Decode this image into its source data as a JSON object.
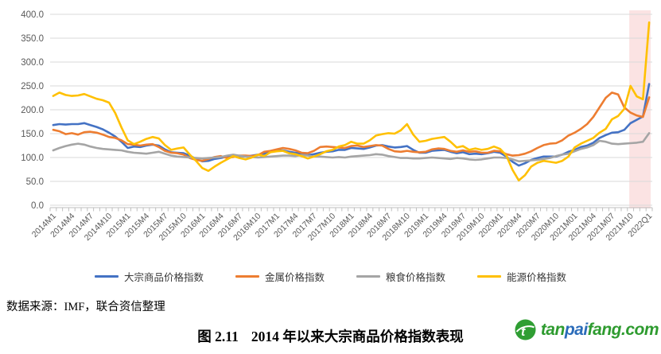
{
  "chart_data": {
    "type": "line",
    "title": "",
    "n_points": 97,
    "points_per_label": 3,
    "ylim": [
      0,
      400
    ],
    "grid": "horizontal",
    "legend_position": "bottom",
    "y_tick_labels": [
      "0.0",
      "50.0",
      "100.0",
      "150.0",
      "200.0",
      "250.0",
      "300.0",
      "350.0",
      "400.0"
    ],
    "x_tick_labels": [
      "2014M1",
      "2014M4",
      "2014M7",
      "2014M10",
      "2015M1",
      "2015M4",
      "2015M7",
      "2015M10",
      "2016M1",
      "2016M4",
      "2016M7",
      "2016M10",
      "2017M1",
      "2017M4",
      "2017M7",
      "2017M10",
      "2018M1",
      "2018M4",
      "2018M7",
      "2018M10",
      "2019M1",
      "2019M4",
      "2019M7",
      "2019M10",
      "2020M1",
      "2020M4",
      "2020M7",
      "2020M10",
      "2021M01",
      "2021M04",
      "2021M07",
      "2021M10",
      "2022Q1"
    ],
    "highlight_band": {
      "from_point": 92.8,
      "to_point": 96.8,
      "color": "#fbe3e3"
    },
    "axis_colors": {
      "gridline": "#d9d9d9",
      "axis_line": "#bfbfbf",
      "tick_label": "#595959"
    },
    "series": [
      {
        "id": "commodity",
        "name": "大宗商品价格指数",
        "color": "#4472C4",
        "values": [
          168,
          170,
          169,
          170,
          170,
          172,
          168,
          164,
          159,
          152,
          144,
          133,
          120,
          123,
          122,
          125,
          127,
          125,
          117,
          111,
          110,
          109,
          104,
          97,
          92,
          93,
          97,
          99,
          102,
          105,
          103,
          102,
          104,
          106,
          108,
          112,
          114,
          115,
          112,
          110,
          108,
          105,
          107,
          110,
          112,
          113,
          116,
          116,
          120,
          119,
          118,
          121,
          125,
          126,
          123,
          121,
          122,
          124,
          116,
          110,
          110,
          114,
          115,
          116,
          112,
          109,
          111,
          107,
          108,
          107,
          109,
          112,
          110,
          102,
          91,
          83,
          88,
          95,
          99,
          102,
          102,
          102,
          106,
          112,
          116,
          122,
          125,
          131,
          141,
          147,
          152,
          153,
          158,
          172,
          179,
          186,
          254
        ]
      },
      {
        "id": "metal",
        "name": "金属价格指数",
        "color": "#ED7D31",
        "values": [
          158,
          155,
          149,
          151,
          148,
          153,
          154,
          152,
          148,
          143,
          141,
          136,
          128,
          127,
          125,
          127,
          128,
          122,
          114,
          110,
          109,
          106,
          99,
          95,
          93,
          97,
          101,
          103,
          99,
          101,
          104,
          104,
          103,
          105,
          112,
          114,
          117,
          120,
          118,
          115,
          110,
          109,
          114,
          122,
          123,
          122,
          121,
          120,
          124,
          125,
          122,
          124,
          126,
          125,
          118,
          113,
          112,
          114,
          112,
          111,
          112,
          117,
          119,
          118,
          114,
          112,
          115,
          112,
          113,
          110,
          110,
          114,
          113,
          107,
          104,
          105,
          108,
          113,
          120,
          126,
          129,
          130,
          136,
          146,
          152,
          160,
          170,
          185,
          205,
          225,
          236,
          232,
          205,
          194,
          188,
          185,
          226
        ]
      },
      {
        "id": "food",
        "name": "粮食价格指数",
        "color": "#A5A5A5",
        "values": [
          115,
          120,
          124,
          127,
          129,
          127,
          123,
          120,
          118,
          117,
          116,
          115,
          112,
          110,
          109,
          108,
          110,
          112,
          108,
          104,
          102,
          101,
          100,
          99,
          98,
          99,
          100,
          101,
          104,
          106,
          104,
          102,
          101,
          100,
          101,
          102,
          103,
          104,
          104,
          103,
          105,
          104,
          102,
          102,
          101,
          100,
          101,
          100,
          102,
          103,
          104,
          105,
          107,
          106,
          103,
          101,
          99,
          99,
          98,
          98,
          99,
          100,
          99,
          98,
          97,
          99,
          98,
          96,
          95,
          96,
          98,
          100,
          100,
          99,
          96,
          92,
          93,
          94,
          95,
          97,
          99,
          103,
          106,
          108,
          113,
          118,
          121,
          126,
          135,
          133,
          129,
          128,
          129,
          130,
          131,
          133,
          151
        ]
      },
      {
        "id": "energy",
        "name": "能源价格指数",
        "color": "#FFC000",
        "values": [
          229,
          236,
          231,
          229,
          230,
          233,
          228,
          223,
          220,
          215,
          193,
          163,
          136,
          128,
          133,
          139,
          143,
          140,
          126,
          116,
          119,
          121,
          106,
          93,
          78,
          72,
          81,
          89,
          96,
          103,
          99,
          96,
          100,
          106,
          103,
          111,
          113,
          114,
          109,
          107,
          103,
          98,
          102,
          107,
          113,
          116,
          123,
          126,
          133,
          129,
          129,
          136,
          146,
          149,
          151,
          150,
          157,
          170,
          148,
          133,
          135,
          139,
          141,
          143,
          133,
          121,
          124,
          116,
          119,
          116,
          118,
          123,
          118,
          104,
          74,
          52,
          63,
          81,
          89,
          93,
          91,
          89,
          93,
          102,
          121,
          129,
          135,
          141,
          152,
          160,
          180,
          187,
          202,
          250,
          228,
          222,
          383
        ]
      }
    ]
  },
  "footer": {
    "source": "数据来源：IMF，联合资信整理",
    "caption_number": "图 2.11",
    "caption_text": "2014 年以来大宗商品价格指数表现"
  },
  "logo": {
    "icon": "tanpaifang-leaf-icon",
    "parts": [
      {
        "text": "tan",
        "color": "#2e9b2f"
      },
      {
        "text": "pai",
        "color": "#2b6cb9"
      },
      {
        "text": "fang.com",
        "color": "#2e9b2f"
      }
    ]
  }
}
